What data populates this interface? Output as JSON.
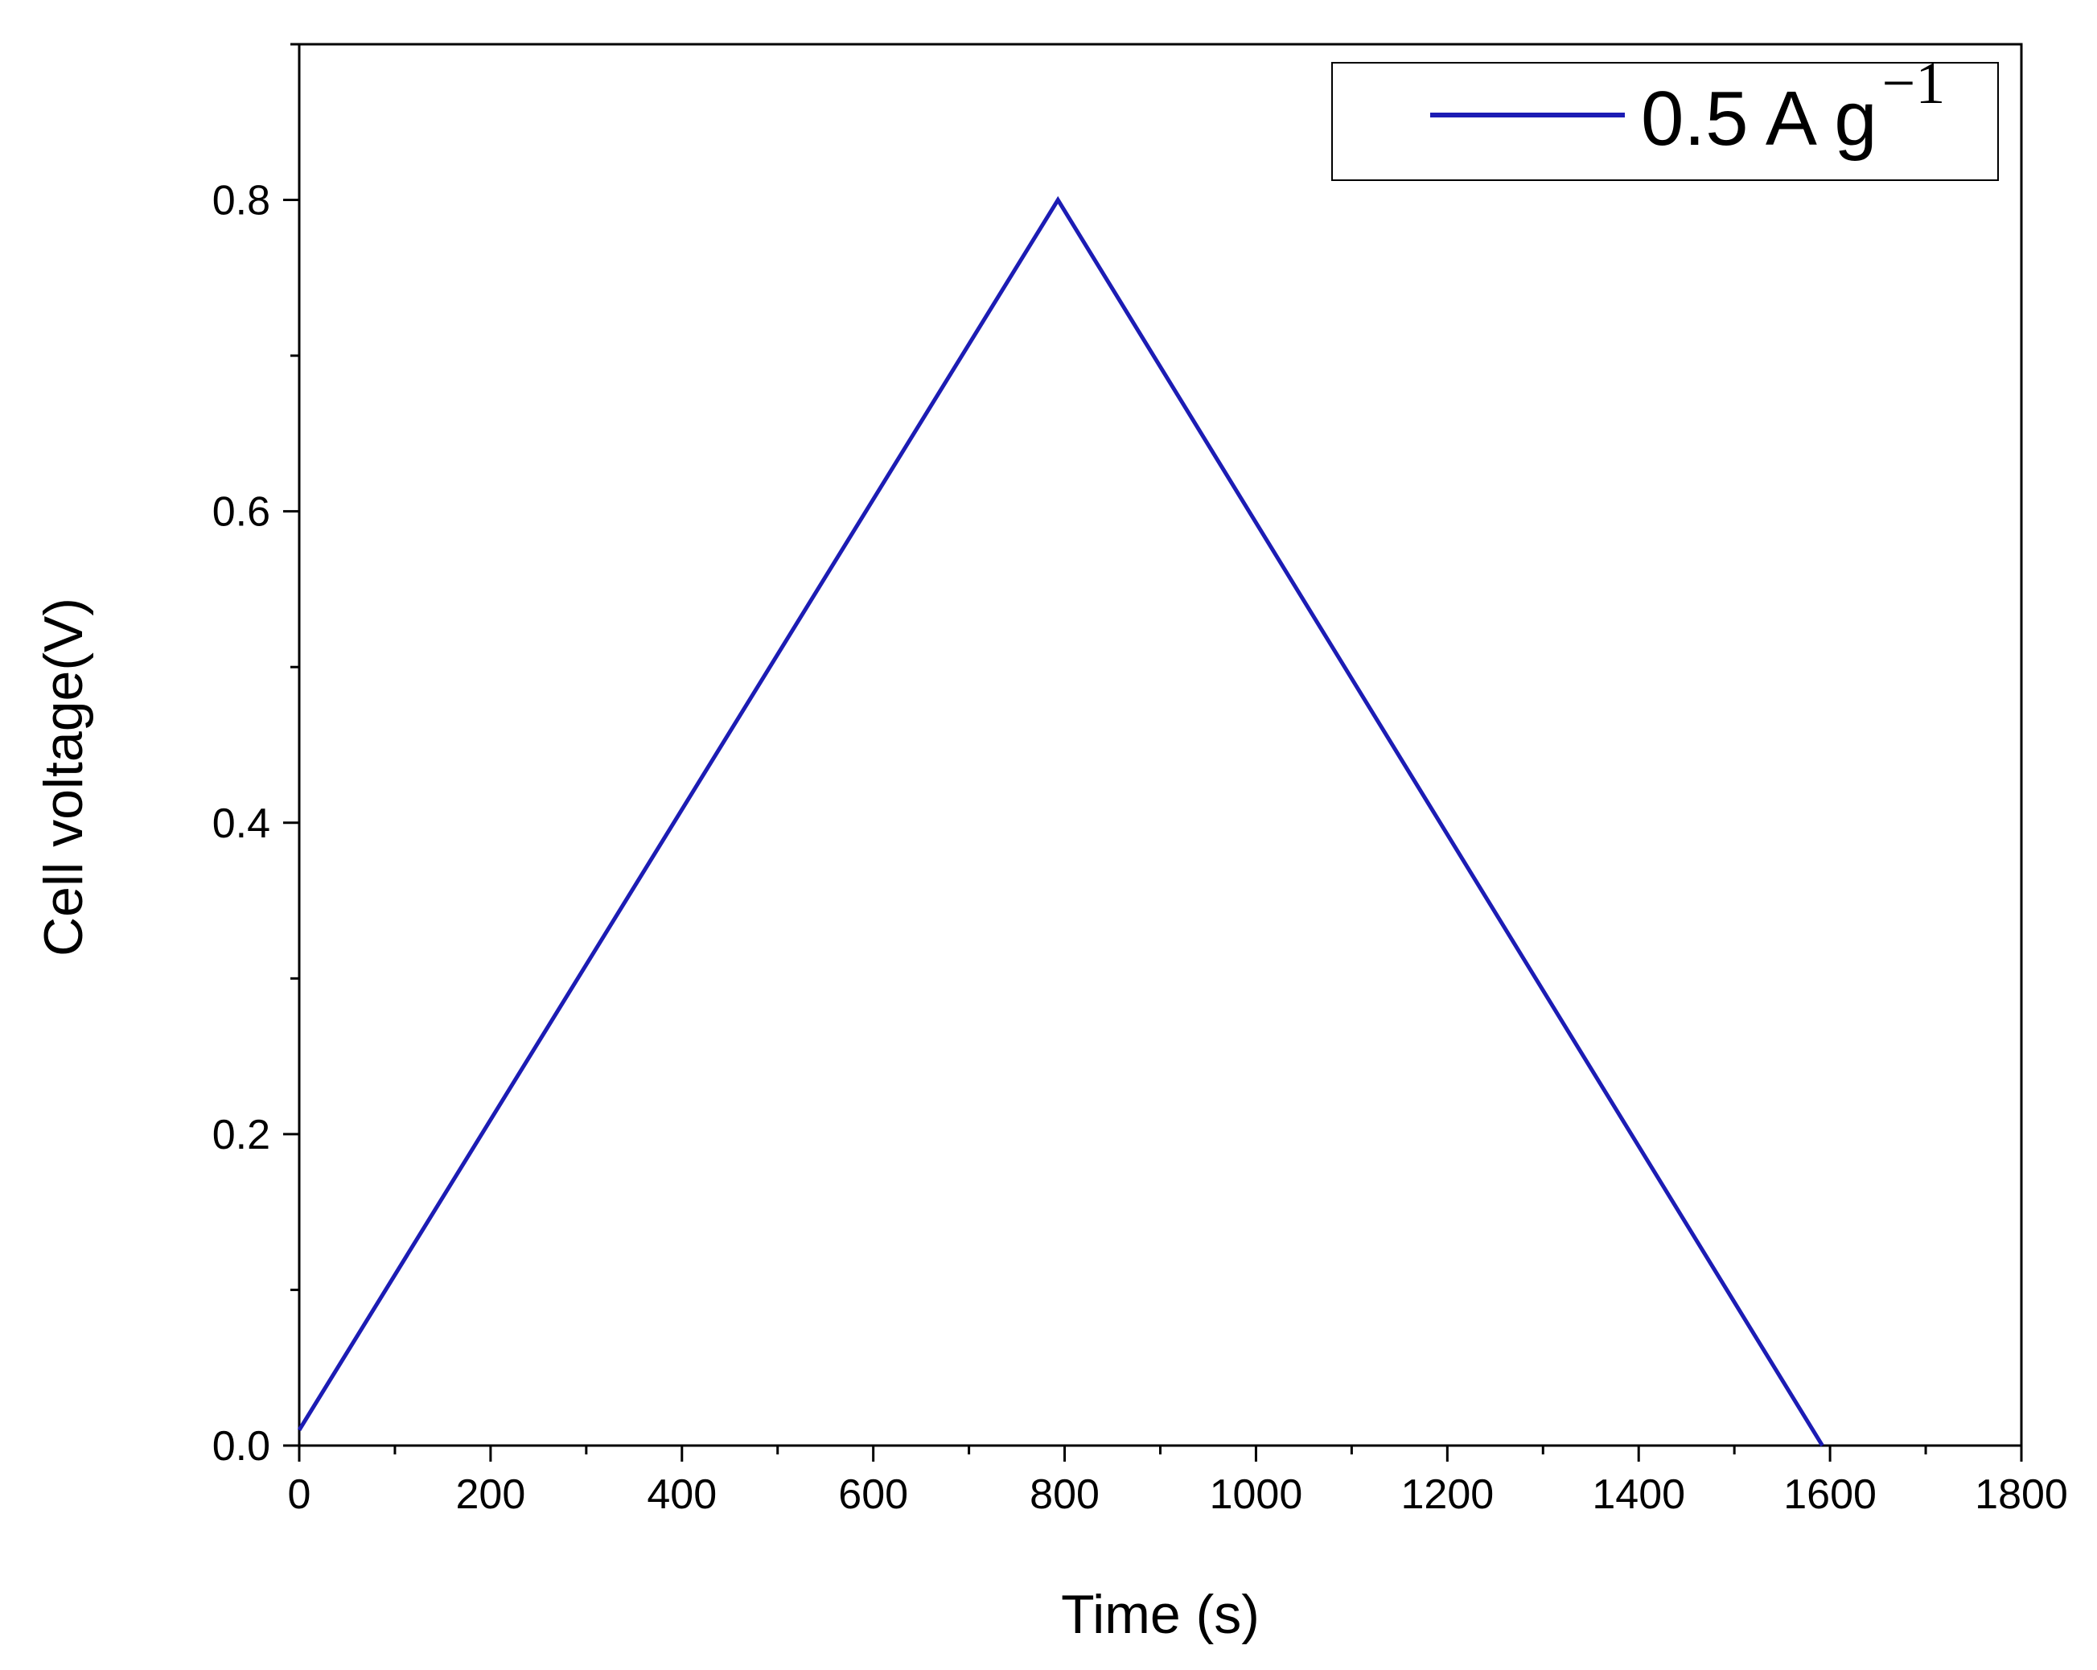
{
  "chart_data": {
    "type": "line",
    "xlabel": "Time (s)",
    "ylabel": "Cell voltage(V)",
    "xlim": [
      0,
      1800
    ],
    "ylim": [
      0,
      0.9
    ],
    "x_ticks": [
      0,
      200,
      400,
      600,
      800,
      1000,
      1200,
      1400,
      1600,
      1800
    ],
    "x_tick_labels": [
      "0",
      "200",
      "400",
      "600",
      "800",
      "1000",
      "1200",
      "1400",
      "1600",
      "1800"
    ],
    "y_ticks": [
      0.0,
      0.2,
      0.4,
      0.6,
      0.8
    ],
    "y_tick_labels": [
      "0.0",
      "0.2",
      "0.4",
      "0.6",
      "0.8"
    ],
    "grid": false,
    "legend_position": "top-right",
    "series": [
      {
        "name": "0.5 A g",
        "name_superscript": "−1",
        "color": "#1c1cb4",
        "x": [
          0,
          793,
          1592
        ],
        "y": [
          0.01,
          0.8,
          0.0
        ]
      }
    ]
  }
}
